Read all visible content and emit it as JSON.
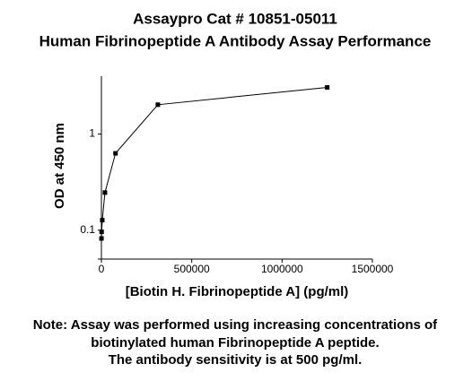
{
  "chart_data": {
    "type": "line",
    "title": "Assaypro Cat # 10851-05011",
    "subtitle": "Human Fibrinopeptide A Antibody Assay Performance",
    "x_label": "[Biotin H. Fibrinopeptide A] (pg/ml)",
    "y_label": "OD at 450 nm",
    "note": [
      "Note: Assay was performed using increasing concentrations of",
      "biotinylated human Fibrinopeptide A peptide.",
      "The antibody sensitivity is at 500 pg/ml."
    ],
    "x": [
      305,
      1221,
      4883,
      19531,
      78125,
      312500,
      1250000
    ],
    "series": [
      {
        "name": "OD",
        "color": "#000000",
        "values": [
          0.082,
          0.096,
          0.127,
          0.246,
          0.63,
          2.02,
          3.06
        ]
      }
    ],
    "xlim": [
      0,
      1500000
    ],
    "xticks": [
      0,
      500000,
      1000000,
      1500000
    ],
    "ylim": [
      0.05,
      4
    ],
    "yticks": [
      0.1,
      1
    ],
    "yscale": "log",
    "grid": false
  }
}
